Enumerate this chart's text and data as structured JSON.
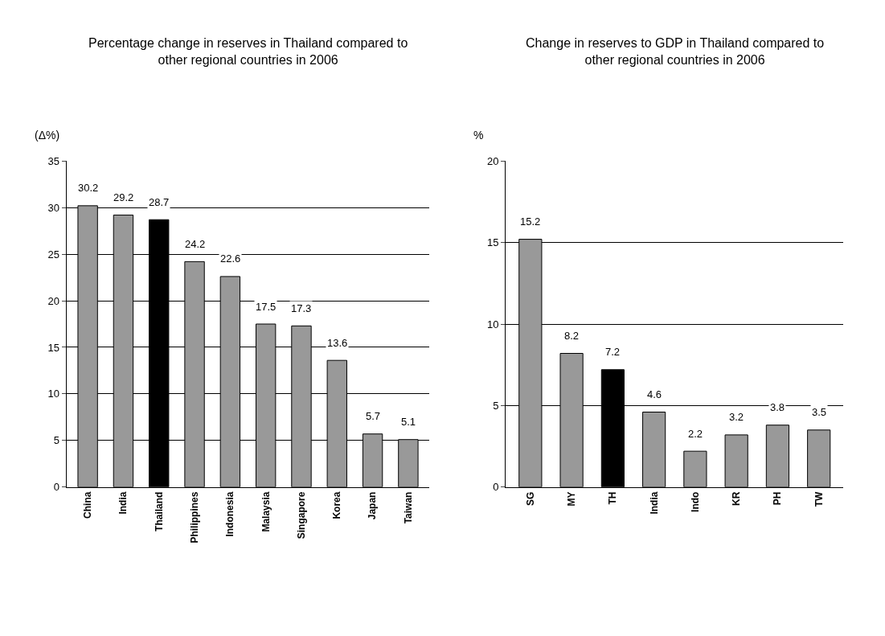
{
  "chart_data": [
    {
      "type": "bar",
      "title": "Percentage change in reserves in Thailand compared to other regional countries in 2006",
      "ylabel": "(Δ%)",
      "categories": [
        "China",
        "India",
        "Thailand",
        "Philippines",
        "Indonesia",
        "Malaysia",
        "Singapore",
        "Korea",
        "Japan",
        "Taiwan"
      ],
      "values": [
        30.2,
        29.2,
        28.7,
        24.2,
        22.6,
        17.5,
        17.3,
        13.6,
        5.7,
        5.1
      ],
      "colors": [
        "#999999",
        "#999999",
        "#000000",
        "#999999",
        "#999999",
        "#999999",
        "#999999",
        "#999999",
        "#999999",
        "#999999"
      ],
      "ylim": [
        0,
        35
      ],
      "yticks": [
        0,
        5,
        10,
        15,
        20,
        25,
        30,
        35
      ],
      "grid": "y",
      "data_labels": true
    },
    {
      "type": "bar",
      "title": "Change in reserves to GDP in Thailand compared to other regional countries in 2006",
      "ylabel": "%",
      "categories": [
        "SG",
        "MY",
        "TH",
        "India",
        "Indo",
        "KR",
        "PH",
        "TW"
      ],
      "values": [
        15.2,
        8.2,
        7.2,
        4.6,
        2.2,
        3.2,
        3.8,
        3.5
      ],
      "colors": [
        "#999999",
        "#999999",
        "#000000",
        "#999999",
        "#999999",
        "#999999",
        "#999999",
        "#999999"
      ],
      "ylim": [
        0,
        20
      ],
      "yticks": [
        0,
        5,
        10,
        15,
        20
      ],
      "grid": "y",
      "data_labels": true
    }
  ]
}
